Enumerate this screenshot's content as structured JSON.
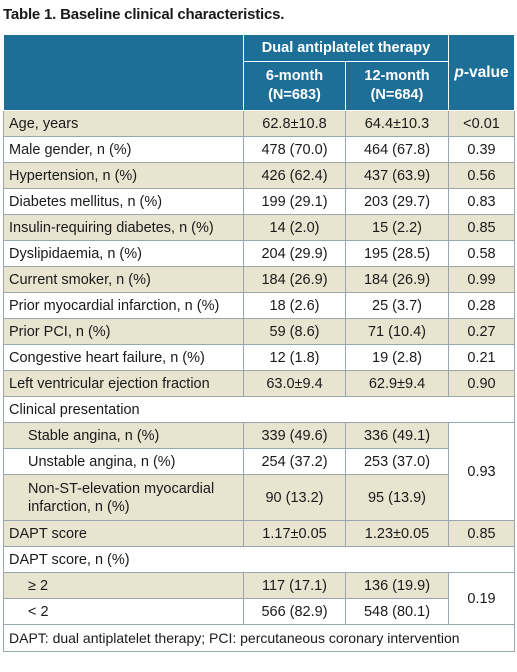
{
  "title": "Table 1. Baseline clinical characteristics.",
  "header": {
    "group_label": "Dual antiplatelet therapy",
    "col1_line1": "6-month",
    "col1_line2": "(N=683)",
    "col2_line1": "12-month",
    "col2_line2": "(N=684)",
    "p_label_italic": "p",
    "p_label_rest": "-value"
  },
  "rows": [
    {
      "label": "Age, years",
      "v6": "62.8±10.8",
      "v12": "64.4±10.3",
      "p": "<0.01"
    },
    {
      "label": "Male gender, n (%)",
      "v6": "478 (70.0)",
      "v12": "464 (67.8)",
      "p": "0.39"
    },
    {
      "label": "Hypertension, n (%)",
      "v6": "426 (62.4)",
      "v12": "437 (63.9)",
      "p": "0.56"
    },
    {
      "label": "Diabetes mellitus, n (%)",
      "v6": "199 (29.1)",
      "v12": "203 (29.7)",
      "p": "0.83"
    },
    {
      "label": "Insulin-requiring diabetes, n (%)",
      "v6": "14 (2.0)",
      "v12": "15 (2.2)",
      "p": "0.85"
    },
    {
      "label": "Dyslipidaemia, n (%)",
      "v6": "204 (29.9)",
      "v12": "195 (28.5)",
      "p": "0.58"
    },
    {
      "label": "Current smoker, n (%)",
      "v6": "184 (26.9)",
      "v12": "184 (26.9)",
      "p": "0.99"
    },
    {
      "label": "Prior myocardial infarction, n (%)",
      "v6": "18 (2.6)",
      "v12": "25 (3.7)",
      "p": "0.28"
    },
    {
      "label": "Prior PCI, n (%)",
      "v6": "59 (8.6)",
      "v12": "71 (10.4)",
      "p": "0.27"
    },
    {
      "label": "Congestive heart failure, n (%)",
      "v6": "12 (1.8)",
      "v12": "19 (2.8)",
      "p": "0.21"
    },
    {
      "label": "Left ventricular ejection fraction",
      "v6": "63.0±9.4",
      "v12": "62.9±9.4",
      "p": "0.90"
    }
  ],
  "clinical": {
    "section_label": "Clinical presentation",
    "items": [
      {
        "label": "Stable angina, n (%)",
        "v6": "339 (49.6)",
        "v12": "336 (49.1)"
      },
      {
        "label": "Unstable angina, n (%)",
        "v6": "254 (37.2)",
        "v12": "253 (37.0)"
      },
      {
        "label_line1": "Non-ST-elevation myocardial",
        "label_line2": "infarction, n (%)",
        "v6": "90 (13.2)",
        "v12": "95 (13.9)"
      }
    ],
    "p": "0.93"
  },
  "dapt_score": {
    "label": "DAPT score",
    "v6": "1.17±0.05",
    "v12": "1.23±0.05",
    "p": "0.85"
  },
  "dapt_n": {
    "section_label": "DAPT score, n (%)",
    "items": [
      {
        "label": "≥ 2",
        "v6": "117 (17.1)",
        "v12": "136 (19.9)"
      },
      {
        "label": "< 2",
        "v6": "566 (82.9)",
        "v12": "548 (80.1)"
      }
    ],
    "p": "0.19"
  },
  "footnote": "DAPT: dual antiplatelet therapy; PCI: percutaneous coronary intervention",
  "colors": {
    "header_bg": "#1e6f98",
    "shade_bg": "#e8e4d0",
    "border": "#9aa6ae"
  }
}
